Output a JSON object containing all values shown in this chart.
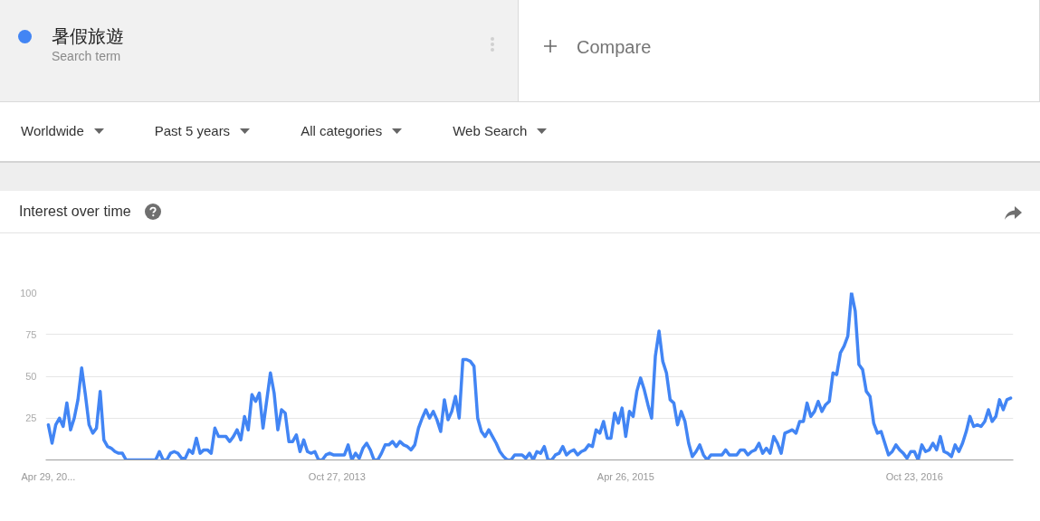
{
  "chart_data": {
    "type": "line",
    "title": "Interest over time",
    "annotations": [
      "Search term",
      "Compare",
      "Worldwide",
      "Past 5 years",
      "All categories",
      "Web Search"
    ],
    "legend": "top left",
    "grid": "y",
    "xlim": [
      "2012-04-24",
      "2017-04-28"
    ],
    "ylim": [
      0,
      100
    ],
    "xticks": [
      {
        "value": "2012-04-29",
        "label": "Apr 29, 20..."
      },
      {
        "value": "2013-10-27",
        "label": "Oct 27, 2013"
      },
      {
        "value": "2015-04-26",
        "label": "Apr 26, 2015"
      },
      {
        "value": "2016-10-23",
        "label": "Oct 23, 2016"
      }
    ],
    "yticks": [
      25,
      50,
      75,
      100
    ],
    "x": [
      "2012-04-29",
      "2012-05-06",
      "2012-05-13",
      "2012-05-20",
      "2012-05-27",
      "2012-06-03",
      "2012-06-10",
      "2012-06-17",
      "2012-06-24",
      "2012-07-01",
      "2012-07-08",
      "2012-07-15",
      "2012-07-22",
      "2012-07-29",
      "2012-08-05",
      "2012-08-12",
      "2012-08-19",
      "2012-08-26",
      "2012-09-02",
      "2012-09-09",
      "2012-09-16",
      "2012-09-23",
      "2012-11-18",
      "2012-11-25",
      "2012-12-02",
      "2012-12-09",
      "2012-12-16",
      "2012-12-23",
      "2012-12-30",
      "2013-01-06",
      "2013-01-13",
      "2013-01-20",
      "2013-01-27",
      "2013-02-03",
      "2013-02-10",
      "2013-02-17",
      "2013-02-24",
      "2013-03-03",
      "2013-03-10",
      "2013-03-17",
      "2013-03-31",
      "2013-04-07",
      "2013-04-14",
      "2013-04-21",
      "2013-04-28",
      "2013-05-05",
      "2013-05-12",
      "2013-05-19",
      "2013-05-26",
      "2013-06-02",
      "2013-06-09",
      "2013-06-23",
      "2013-06-30",
      "2013-07-07",
      "2013-07-14",
      "2013-07-21",
      "2013-07-28",
      "2013-08-04",
      "2013-08-11",
      "2013-08-18",
      "2013-08-25",
      "2013-09-01",
      "2013-09-08",
      "2013-09-15",
      "2013-09-22",
      "2013-09-29",
      "2013-10-06",
      "2013-10-13",
      "2013-10-20",
      "2013-11-10",
      "2013-11-17",
      "2013-11-24",
      "2013-12-01",
      "2013-12-08",
      "2013-12-15",
      "2013-12-22",
      "2013-12-29",
      "2014-01-05",
      "2014-01-12",
      "2014-01-19",
      "2014-01-26",
      "2014-02-02",
      "2014-02-09",
      "2014-02-16",
      "2014-02-23",
      "2014-03-02",
      "2014-03-09",
      "2014-03-16",
      "2014-03-23",
      "2014-03-30",
      "2014-04-06",
      "2014-04-13",
      "2014-04-20",
      "2014-04-27",
      "2014-05-04",
      "2014-05-11",
      "2014-05-18",
      "2014-05-25",
      "2014-06-01",
      "2014-06-08",
      "2014-06-15",
      "2014-06-22",
      "2014-06-29",
      "2014-07-06",
      "2014-07-13",
      "2014-07-20",
      "2014-07-27",
      "2014-08-03",
      "2014-08-10",
      "2014-08-17",
      "2014-08-24",
      "2014-08-31",
      "2014-09-07",
      "2014-09-14",
      "2014-09-21",
      "2014-09-28",
      "2014-10-12",
      "2014-10-19",
      "2014-10-26",
      "2014-11-02",
      "2014-11-09",
      "2014-11-16",
      "2014-11-23",
      "2014-11-30",
      "2014-12-07",
      "2014-12-14",
      "2014-12-21",
      "2014-12-28",
      "2015-01-04",
      "2015-01-11",
      "2015-01-18",
      "2015-01-25",
      "2015-02-01",
      "2015-02-08",
      "2015-02-15",
      "2015-02-22",
      "2015-03-01",
      "2015-03-08",
      "2015-03-15",
      "2015-03-22",
      "2015-03-29",
      "2015-04-05",
      "2015-04-12",
      "2015-04-19",
      "2015-04-26",
      "2015-05-03",
      "2015-05-10",
      "2015-05-17",
      "2015-05-24",
      "2015-05-31",
      "2015-06-07",
      "2015-06-14",
      "2015-06-21",
      "2015-06-28",
      "2015-07-05",
      "2015-07-12",
      "2015-07-19",
      "2015-07-26",
      "2015-08-02",
      "2015-08-09",
      "2015-08-16",
      "2015-08-23",
      "2015-08-30",
      "2015-09-06",
      "2015-09-13",
      "2015-09-20",
      "2015-09-27",
      "2015-10-04",
      "2015-10-25",
      "2015-11-01",
      "2015-11-08",
      "2015-11-22",
      "2015-11-29",
      "2015-12-06",
      "2015-12-13",
      "2015-12-20",
      "2015-12-27",
      "2016-01-03",
      "2016-01-10",
      "2016-01-17",
      "2016-01-24",
      "2016-01-31",
      "2016-02-07",
      "2016-02-14",
      "2016-02-21",
      "2016-02-28",
      "2016-03-06",
      "2016-03-13",
      "2016-03-20",
      "2016-03-27",
      "2016-04-03",
      "2016-04-10",
      "2016-04-17",
      "2016-04-24",
      "2016-05-01",
      "2016-05-08",
      "2016-05-15",
      "2016-05-22",
      "2016-05-29",
      "2016-06-05",
      "2016-06-12",
      "2016-06-19",
      "2016-06-26",
      "2016-07-03",
      "2016-07-10",
      "2016-07-17",
      "2016-07-24",
      "2016-07-31",
      "2016-08-07",
      "2016-08-14",
      "2016-08-21",
      "2016-08-28",
      "2016-09-04",
      "2016-09-11",
      "2016-09-18",
      "2016-09-25",
      "2016-10-02",
      "2016-10-09",
      "2016-10-16",
      "2016-10-23",
      "2016-10-30",
      "2016-11-06",
      "2016-11-13",
      "2016-11-20",
      "2016-11-27",
      "2016-12-04",
      "2016-12-11",
      "2016-12-18",
      "2016-12-25",
      "2017-01-01",
      "2017-01-08",
      "2017-01-15",
      "2017-01-22",
      "2017-01-29",
      "2017-02-05",
      "2017-02-12",
      "2017-02-19",
      "2017-02-26",
      "2017-03-05",
      "2017-03-12",
      "2017-03-19",
      "2017-03-26",
      "2017-04-02",
      "2017-04-09",
      "2017-04-16",
      "2017-04-23"
    ],
    "series": [
      {
        "name": "暑假旅遊",
        "color": "#4285f4",
        "values": [
          21,
          10,
          21,
          25,
          20,
          34,
          18,
          25,
          36,
          55,
          39,
          21,
          16,
          19,
          41,
          12,
          8,
          7,
          5,
          4,
          4,
          0,
          0,
          5,
          0,
          0,
          4,
          5,
          4,
          1,
          1,
          6,
          4,
          13,
          4,
          6,
          6,
          4,
          19,
          14,
          14,
          11,
          14,
          18,
          12,
          26,
          18,
          39,
          35,
          40,
          19,
          52,
          40,
          18,
          30,
          28,
          11,
          11,
          15,
          5,
          12,
          5,
          4,
          5,
          0,
          0,
          3,
          4,
          3,
          3,
          9,
          0,
          4,
          1,
          7,
          10,
          6,
          0,
          0,
          4,
          9,
          9,
          11,
          8,
          11,
          9,
          8,
          6,
          9,
          19,
          25,
          30,
          25,
          29,
          24,
          17,
          36,
          24,
          29,
          38,
          25,
          60,
          60,
          59,
          56,
          25,
          17,
          14,
          18,
          14,
          10,
          5,
          2,
          0,
          0,
          3,
          3,
          1,
          4,
          0,
          5,
          4,
          8,
          0,
          0,
          3,
          4,
          8,
          3,
          5,
          6,
          3,
          5,
          6,
          9,
          8,
          18,
          16,
          23,
          13,
          13,
          28,
          22,
          31,
          14,
          29,
          26,
          41,
          49,
          42,
          33,
          25,
          62,
          77,
          59,
          52,
          36,
          34,
          21,
          29,
          23,
          10,
          2,
          5,
          9,
          3,
          0,
          3,
          3,
          6,
          3,
          3,
          6,
          6,
          3,
          5,
          6,
          10,
          4,
          7,
          4,
          14,
          10,
          4,
          16,
          17,
          18,
          16,
          23,
          23,
          34,
          26,
          29,
          35,
          29,
          33,
          35,
          52,
          51,
          64,
          68,
          74,
          100,
          89,
          57,
          54,
          41,
          38,
          22,
          16,
          17,
          10,
          3,
          5,
          9,
          6,
          4,
          1,
          5,
          5,
          0,
          9,
          5,
          6,
          10,
          6,
          14,
          5,
          4,
          2,
          9,
          5,
          10,
          17,
          26,
          20,
          21,
          20,
          23,
          30,
          23,
          26,
          36,
          30,
          36,
          37
        ]
      }
    ]
  }
}
